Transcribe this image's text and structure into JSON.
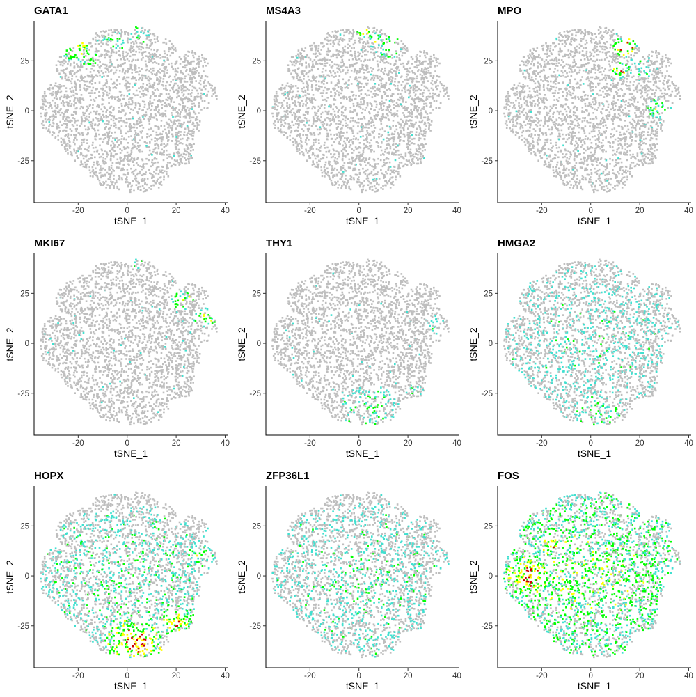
{
  "chart_data": [
    {
      "type": "scatter",
      "title": "GATA1",
      "xlabel": "tSNE_1",
      "ylabel": "tSNE_2",
      "xlim": [
        -38,
        41
      ],
      "ylim": [
        -46,
        45
      ],
      "xticks": [
        "-20",
        "0",
        "20",
        "40"
      ],
      "yticks": [
        "-25",
        "0",
        "25"
      ],
      "colors": {
        "base": "#BEBEBE",
        "low": "#40E0D0",
        "mid": "#00FF00",
        "high": "#FFFF00",
        "max": "#CC0000"
      },
      "grid": false,
      "expression_hotspots": [
        {
          "x": -20,
          "y": 30,
          "r": 6,
          "level": 0.75
        },
        {
          "x": -5,
          "y": 35,
          "r": 5,
          "level": 0.45
        },
        {
          "x": 5,
          "y": 38,
          "r": 5,
          "level": 0.45
        },
        {
          "x": -15,
          "y": 25,
          "r": 4,
          "level": 0.5
        }
      ]
    },
    {
      "type": "scatter",
      "title": "MS4A3",
      "xlabel": "tSNE_1",
      "ylabel": "tSNE_2",
      "xlim": [
        -38,
        41
      ],
      "ylim": [
        -46,
        45
      ],
      "xticks": [
        "-20",
        "0",
        "20",
        "40"
      ],
      "yticks": [
        "-25",
        "0",
        "25"
      ],
      "colors": {
        "base": "#BEBEBE",
        "low": "#40E0D0",
        "mid": "#00FF00",
        "high": "#FFFF00",
        "max": "#CC0000"
      },
      "grid": false,
      "expression_hotspots": [
        {
          "x": 2,
          "y": 40,
          "r": 3,
          "level": 0.92
        },
        {
          "x": 12,
          "y": 32,
          "r": 6,
          "level": 0.6
        },
        {
          "x": 7,
          "y": 35,
          "r": 4,
          "level": 0.55
        },
        {
          "x": -28,
          "y": 33,
          "r": 2,
          "level": 0.5
        }
      ]
    },
    {
      "type": "scatter",
      "title": "MPO",
      "xlabel": "tSNE_1",
      "ylabel": "tSNE_2",
      "xlim": [
        -38,
        41
      ],
      "ylim": [
        -46,
        45
      ],
      "xticks": [
        "-20",
        "0",
        "20",
        "40"
      ],
      "yticks": [
        "-25",
        "0",
        "25"
      ],
      "colors": {
        "base": "#BEBEBE",
        "low": "#40E0D0",
        "mid": "#00FF00",
        "high": "#FFFF00",
        "max": "#CC0000"
      },
      "grid": false,
      "expression_hotspots": [
        {
          "x": 14,
          "y": 32,
          "r": 5,
          "level": 0.95
        },
        {
          "x": 12,
          "y": 20,
          "r": 4,
          "level": 0.75
        },
        {
          "x": 27,
          "y": 1,
          "r": 6,
          "level": 0.55
        },
        {
          "x": 20,
          "y": 22,
          "r": 5,
          "level": 0.45
        }
      ]
    },
    {
      "type": "scatter",
      "title": "MKI67",
      "xlabel": "tSNE_1",
      "ylabel": "tSNE_2",
      "xlim": [
        -38,
        41
      ],
      "ylim": [
        -46,
        45
      ],
      "xticks": [
        "-20",
        "0",
        "20",
        "40"
      ],
      "yticks": [
        "-25",
        "0",
        "25"
      ],
      "colors": {
        "base": "#BEBEBE",
        "low": "#40E0D0",
        "mid": "#00FF00",
        "high": "#FFFF00",
        "max": "#CC0000"
      },
      "grid": false,
      "expression_hotspots": [
        {
          "x": 23,
          "y": 22,
          "r": 5,
          "level": 0.6
        },
        {
          "x": 32,
          "y": 13,
          "r": 5,
          "level": 0.65
        },
        {
          "x": 5,
          "y": 40,
          "r": 3,
          "level": 0.45
        }
      ]
    },
    {
      "type": "scatter",
      "title": "THY1",
      "xlabel": "tSNE_1",
      "ylabel": "tSNE_2",
      "xlim": [
        -38,
        41
      ],
      "ylim": [
        -46,
        45
      ],
      "xticks": [
        "-20",
        "0",
        "20",
        "40"
      ],
      "yticks": [
        "-25",
        "0",
        "25"
      ],
      "colors": {
        "base": "#BEBEBE",
        "low": "#40E0D0",
        "mid": "#00FF00",
        "high": "#FFFF00",
        "max": "#CC0000"
      },
      "grid": false,
      "expression_hotspots": [
        {
          "x": 5,
          "y": -33,
          "r": 12,
          "level": 0.4
        },
        {
          "x": 30,
          "y": 10,
          "r": 5,
          "level": 0.3
        },
        {
          "x": 24,
          "y": -24,
          "r": 5,
          "level": 0.3
        }
      ]
    },
    {
      "type": "scatter",
      "title": "HMGA2",
      "xlabel": "tSNE_1",
      "ylabel": "tSNE_2",
      "xlim": [
        -38,
        41
      ],
      "ylim": [
        -46,
        45
      ],
      "xticks": [
        "-20",
        "0",
        "20",
        "40"
      ],
      "yticks": [
        "-25",
        "0",
        "25"
      ],
      "colors": {
        "base": "#BEBEBE",
        "low": "#40E0D0",
        "mid": "#00FF00",
        "high": "#FFFF00",
        "max": "#CC0000"
      },
      "grid": false,
      "expression_hotspots": [
        {
          "x": 0,
          "y": 0,
          "r": 40,
          "level": 0.25
        },
        {
          "x": 3,
          "y": -35,
          "r": 10,
          "level": 0.45
        },
        {
          "x": -30,
          "y": -10,
          "r": 5,
          "level": 0.35
        }
      ]
    },
    {
      "type": "scatter",
      "title": "HOPX",
      "xlabel": "tSNE_1",
      "ylabel": "tSNE_2",
      "xlim": [
        -38,
        41
      ],
      "ylim": [
        -46,
        45
      ],
      "xticks": [
        "-20",
        "0",
        "20",
        "40"
      ],
      "yticks": [
        "-25",
        "0",
        "25"
      ],
      "colors": {
        "base": "#BEBEBE",
        "low": "#40E0D0",
        "mid": "#00FF00",
        "high": "#FFFF00",
        "max": "#CC0000"
      },
      "grid": false,
      "expression_hotspots": [
        {
          "x": 0,
          "y": -5,
          "r": 40,
          "level": 0.35
        },
        {
          "x": 3,
          "y": -33,
          "r": 12,
          "level": 0.85
        },
        {
          "x": 20,
          "y": -23,
          "r": 8,
          "level": 0.75
        },
        {
          "x": 30,
          "y": 10,
          "r": 6,
          "level": 0.55
        }
      ]
    },
    {
      "type": "scatter",
      "title": "ZFP36L1",
      "xlabel": "tSNE_1",
      "ylabel": "tSNE_2",
      "xlim": [
        -38,
        41
      ],
      "ylim": [
        -46,
        45
      ],
      "xticks": [
        "-20",
        "0",
        "20",
        "40"
      ],
      "yticks": [
        "-25",
        "0",
        "25"
      ],
      "colors": {
        "base": "#BEBEBE",
        "low": "#40E0D0",
        "mid": "#00FF00",
        "high": "#FFFF00",
        "max": "#CC0000"
      },
      "grid": false,
      "expression_hotspots": [
        {
          "x": 0,
          "y": -5,
          "r": 42,
          "level": 0.3
        }
      ]
    },
    {
      "type": "scatter",
      "title": "FOS",
      "xlabel": "tSNE_1",
      "ylabel": "tSNE_2",
      "xlim": [
        -38,
        41
      ],
      "ylim": [
        -46,
        45
      ],
      "xticks": [
        "-20",
        "0",
        "20",
        "40"
      ],
      "yticks": [
        "-25",
        "0",
        "25"
      ],
      "colors": {
        "base": "#BEBEBE",
        "low": "#40E0D0",
        "mid": "#00FF00",
        "high": "#FFFF00",
        "max": "#CC0000"
      },
      "grid": false,
      "expression_hotspots": [
        {
          "x": 0,
          "y": 0,
          "r": 48,
          "level": 0.55
        },
        {
          "x": -25,
          "y": 0,
          "r": 10,
          "level": 0.85
        },
        {
          "x": -15,
          "y": 15,
          "r": 8,
          "level": 0.7
        },
        {
          "x": 10,
          "y": -5,
          "r": 10,
          "level": 0.45
        }
      ]
    }
  ]
}
